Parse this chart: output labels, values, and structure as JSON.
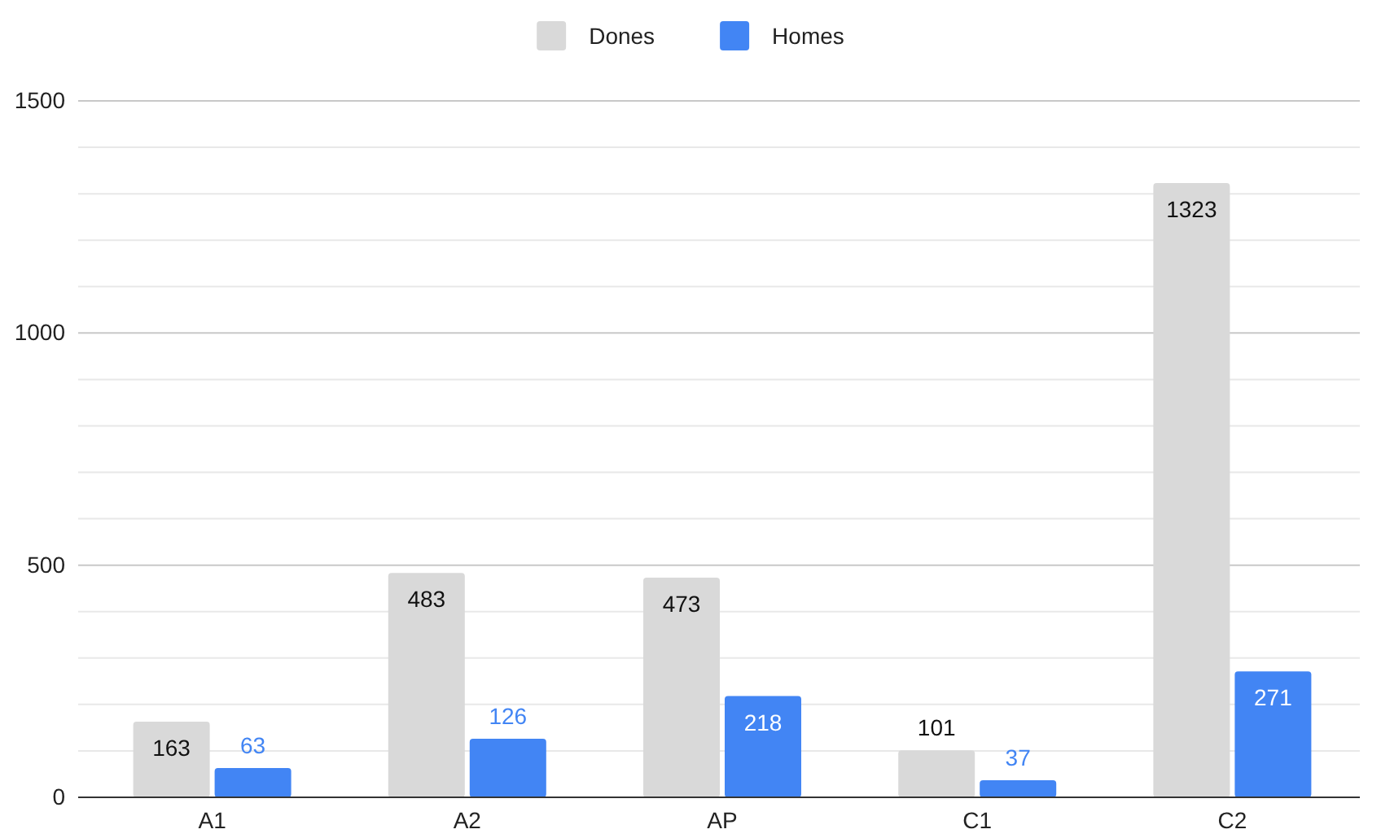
{
  "chart_data": {
    "type": "bar",
    "categories": [
      "A1",
      "A2",
      "AP",
      "C1",
      "C2"
    ],
    "series": [
      {
        "name": "Dones",
        "color": "#d9d9d9",
        "values": [
          163,
          483,
          473,
          101,
          1323
        ]
      },
      {
        "name": "Homes",
        "color": "#4285f4",
        "values": [
          63,
          126,
          218,
          37,
          271
        ]
      }
    ],
    "ylim": [
      0,
      1500
    ],
    "yticks": [
      0,
      {
        "value": 100,
        "label": null
      },
      {
        "value": 200,
        "label": null
      },
      {
        "value": 300,
        "label": null
      },
      {
        "value": 400,
        "label": null
      },
      500,
      {
        "value": 600,
        "label": null
      },
      {
        "value": 700,
        "label": null
      },
      {
        "value": 800,
        "label": null
      },
      {
        "value": 900,
        "label": null
      },
      1000,
      {
        "value": 1100,
        "label": null
      },
      {
        "value": 1200,
        "label": null
      },
      {
        "value": 1300,
        "label": null
      },
      {
        "value": 1400,
        "label": null
      },
      1500
    ],
    "grid": true,
    "legend": "top",
    "data_labels": true
  }
}
